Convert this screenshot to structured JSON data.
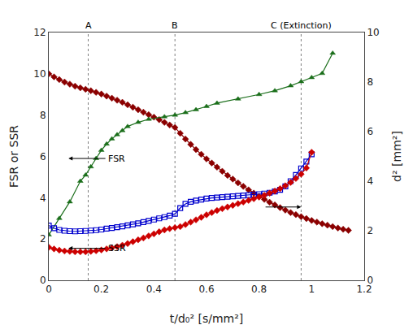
{
  "chart_data": {
    "type": "line",
    "xlabel": "t/d₀² [s/mm²]",
    "ylabel": "FSR or SSR",
    "y2label": "d² [mm²]",
    "xlim": [
      0,
      1.2
    ],
    "xticks": [
      0,
      0.2,
      0.4,
      0.6,
      0.8,
      1,
      1.2
    ],
    "ylim": [
      0,
      12
    ],
    "yticks": [
      0,
      2,
      4,
      6,
      8,
      10,
      12
    ],
    "y2lim": [
      0,
      10
    ],
    "y2ticks": [
      0,
      2,
      4,
      6,
      8,
      10
    ],
    "grid": false,
    "series": [
      {
        "color": "#8B0000",
        "marker": "diamond",
        "x": [
          0.0,
          0.02,
          0.04,
          0.06,
          0.08,
          0.1,
          0.12,
          0.14,
          0.16,
          0.18,
          0.2,
          0.22,
          0.24,
          0.26,
          0.28,
          0.3,
          0.32,
          0.34,
          0.36,
          0.38,
          0.4,
          0.42,
          0.44,
          0.46,
          0.48,
          0.5,
          0.52,
          0.54,
          0.56,
          0.58,
          0.6,
          0.62,
          0.64,
          0.66,
          0.68,
          0.7,
          0.72,
          0.74,
          0.76,
          0.78,
          0.8,
          0.82,
          0.84,
          0.86,
          0.88,
          0.9,
          0.92,
          0.94,
          0.96,
          0.98,
          1.0,
          1.02,
          1.04,
          1.06,
          1.08,
          1.1,
          1.12,
          1.14
        ],
        "values": [
          10.0,
          9.85,
          9.72,
          9.6,
          9.5,
          9.4,
          9.32,
          9.25,
          9.18,
          9.1,
          9.02,
          8.92,
          8.82,
          8.72,
          8.62,
          8.5,
          8.38,
          8.26,
          8.14,
          8.02,
          7.9,
          7.78,
          7.65,
          7.52,
          7.4,
          7.12,
          6.84,
          6.58,
          6.33,
          6.1,
          5.88,
          5.68,
          5.48,
          5.28,
          5.08,
          4.9,
          4.72,
          4.55,
          4.38,
          4.22,
          4.07,
          3.92,
          3.78,
          3.65,
          3.52,
          3.4,
          3.28,
          3.18,
          3.08,
          2.99,
          2.9,
          2.82,
          2.74,
          2.67,
          2.6,
          2.53,
          2.47,
          2.42
        ]
      },
      {
        "color": "#1a6e1a",
        "marker": "triangle-up",
        "x": [
          0.0,
          0.04,
          0.08,
          0.12,
          0.14,
          0.16,
          0.18,
          0.2,
          0.22,
          0.24,
          0.26,
          0.28,
          0.3,
          0.34,
          0.38,
          0.44,
          0.48,
          0.52,
          0.56,
          0.6,
          0.64,
          0.72,
          0.8,
          0.86,
          0.92,
          0.96,
          1.0,
          1.04,
          1.08
        ],
        "values": [
          2.2,
          3.0,
          3.8,
          4.8,
          5.1,
          5.5,
          5.9,
          6.3,
          6.6,
          6.85,
          7.05,
          7.25,
          7.45,
          7.65,
          7.8,
          7.92,
          8.0,
          8.12,
          8.26,
          8.42,
          8.58,
          8.78,
          9.0,
          9.18,
          9.42,
          9.62,
          9.82,
          10.02,
          11.0
        ]
      },
      {
        "color": "#0000CD",
        "marker": "square-open",
        "x": [
          0.0,
          0.02,
          0.04,
          0.06,
          0.08,
          0.1,
          0.12,
          0.14,
          0.16,
          0.18,
          0.2,
          0.22,
          0.24,
          0.26,
          0.28,
          0.3,
          0.32,
          0.34,
          0.36,
          0.38,
          0.4,
          0.42,
          0.44,
          0.46,
          0.48,
          0.5,
          0.52,
          0.54,
          0.56,
          0.58,
          0.6,
          0.62,
          0.64,
          0.66,
          0.68,
          0.7,
          0.72,
          0.74,
          0.76,
          0.78,
          0.8,
          0.82,
          0.84,
          0.86,
          0.88,
          0.9,
          0.92,
          0.94,
          0.96,
          0.98,
          1.0
        ],
        "values": [
          2.65,
          2.52,
          2.44,
          2.4,
          2.38,
          2.37,
          2.38,
          2.39,
          2.41,
          2.43,
          2.46,
          2.5,
          2.53,
          2.57,
          2.61,
          2.66,
          2.71,
          2.76,
          2.82,
          2.88,
          2.94,
          3.0,
          3.06,
          3.13,
          3.22,
          3.5,
          3.7,
          3.8,
          3.86,
          3.91,
          3.96,
          3.99,
          4.01,
          4.03,
          4.05,
          4.07,
          4.09,
          4.11,
          4.13,
          4.15,
          4.17,
          4.2,
          4.24,
          4.3,
          4.38,
          4.55,
          4.8,
          5.1,
          5.42,
          5.75,
          6.1
        ]
      },
      {
        "color": "#CC0000",
        "marker": "diamond",
        "x": [
          0.0,
          0.02,
          0.04,
          0.06,
          0.08,
          0.1,
          0.12,
          0.14,
          0.16,
          0.18,
          0.2,
          0.22,
          0.24,
          0.26,
          0.28,
          0.3,
          0.32,
          0.34,
          0.36,
          0.38,
          0.4,
          0.42,
          0.44,
          0.46,
          0.48,
          0.5,
          0.52,
          0.54,
          0.56,
          0.58,
          0.6,
          0.62,
          0.64,
          0.66,
          0.68,
          0.7,
          0.72,
          0.74,
          0.76,
          0.78,
          0.8,
          0.82,
          0.84,
          0.86,
          0.88,
          0.9,
          0.92,
          0.94,
          0.96,
          0.98,
          1.0
        ],
        "values": [
          1.6,
          1.52,
          1.46,
          1.42,
          1.4,
          1.38,
          1.38,
          1.38,
          1.4,
          1.43,
          1.47,
          1.52,
          1.57,
          1.63,
          1.7,
          1.78,
          1.87,
          1.96,
          2.05,
          2.15,
          2.25,
          2.35,
          2.44,
          2.5,
          2.55,
          2.6,
          2.7,
          2.82,
          2.93,
          3.05,
          3.17,
          3.28,
          3.38,
          3.47,
          3.55,
          3.63,
          3.71,
          3.79,
          3.87,
          3.95,
          4.03,
          4.12,
          4.22,
          4.32,
          4.44,
          4.58,
          4.74,
          4.93,
          5.14,
          5.44,
          6.2
        ]
      }
    ],
    "vlines": [
      {
        "x": 0.15,
        "label": "A"
      },
      {
        "x": 0.48,
        "label": "B"
      },
      {
        "x": 0.96,
        "label": "C (Extinction)"
      }
    ],
    "annotations": [
      {
        "text": "FSR",
        "x": 0.22,
        "y": 5.9,
        "arrow_to": [
          0.075,
          5.9
        ]
      },
      {
        "text": "SSR",
        "x": 0.22,
        "y": 1.55,
        "arrow_to": [
          0.075,
          1.55
        ]
      }
    ],
    "arrows": [
      {
        "from": [
          0.82,
          3.55
        ],
        "to": [
          0.96,
          3.55
        ]
      }
    ]
  }
}
